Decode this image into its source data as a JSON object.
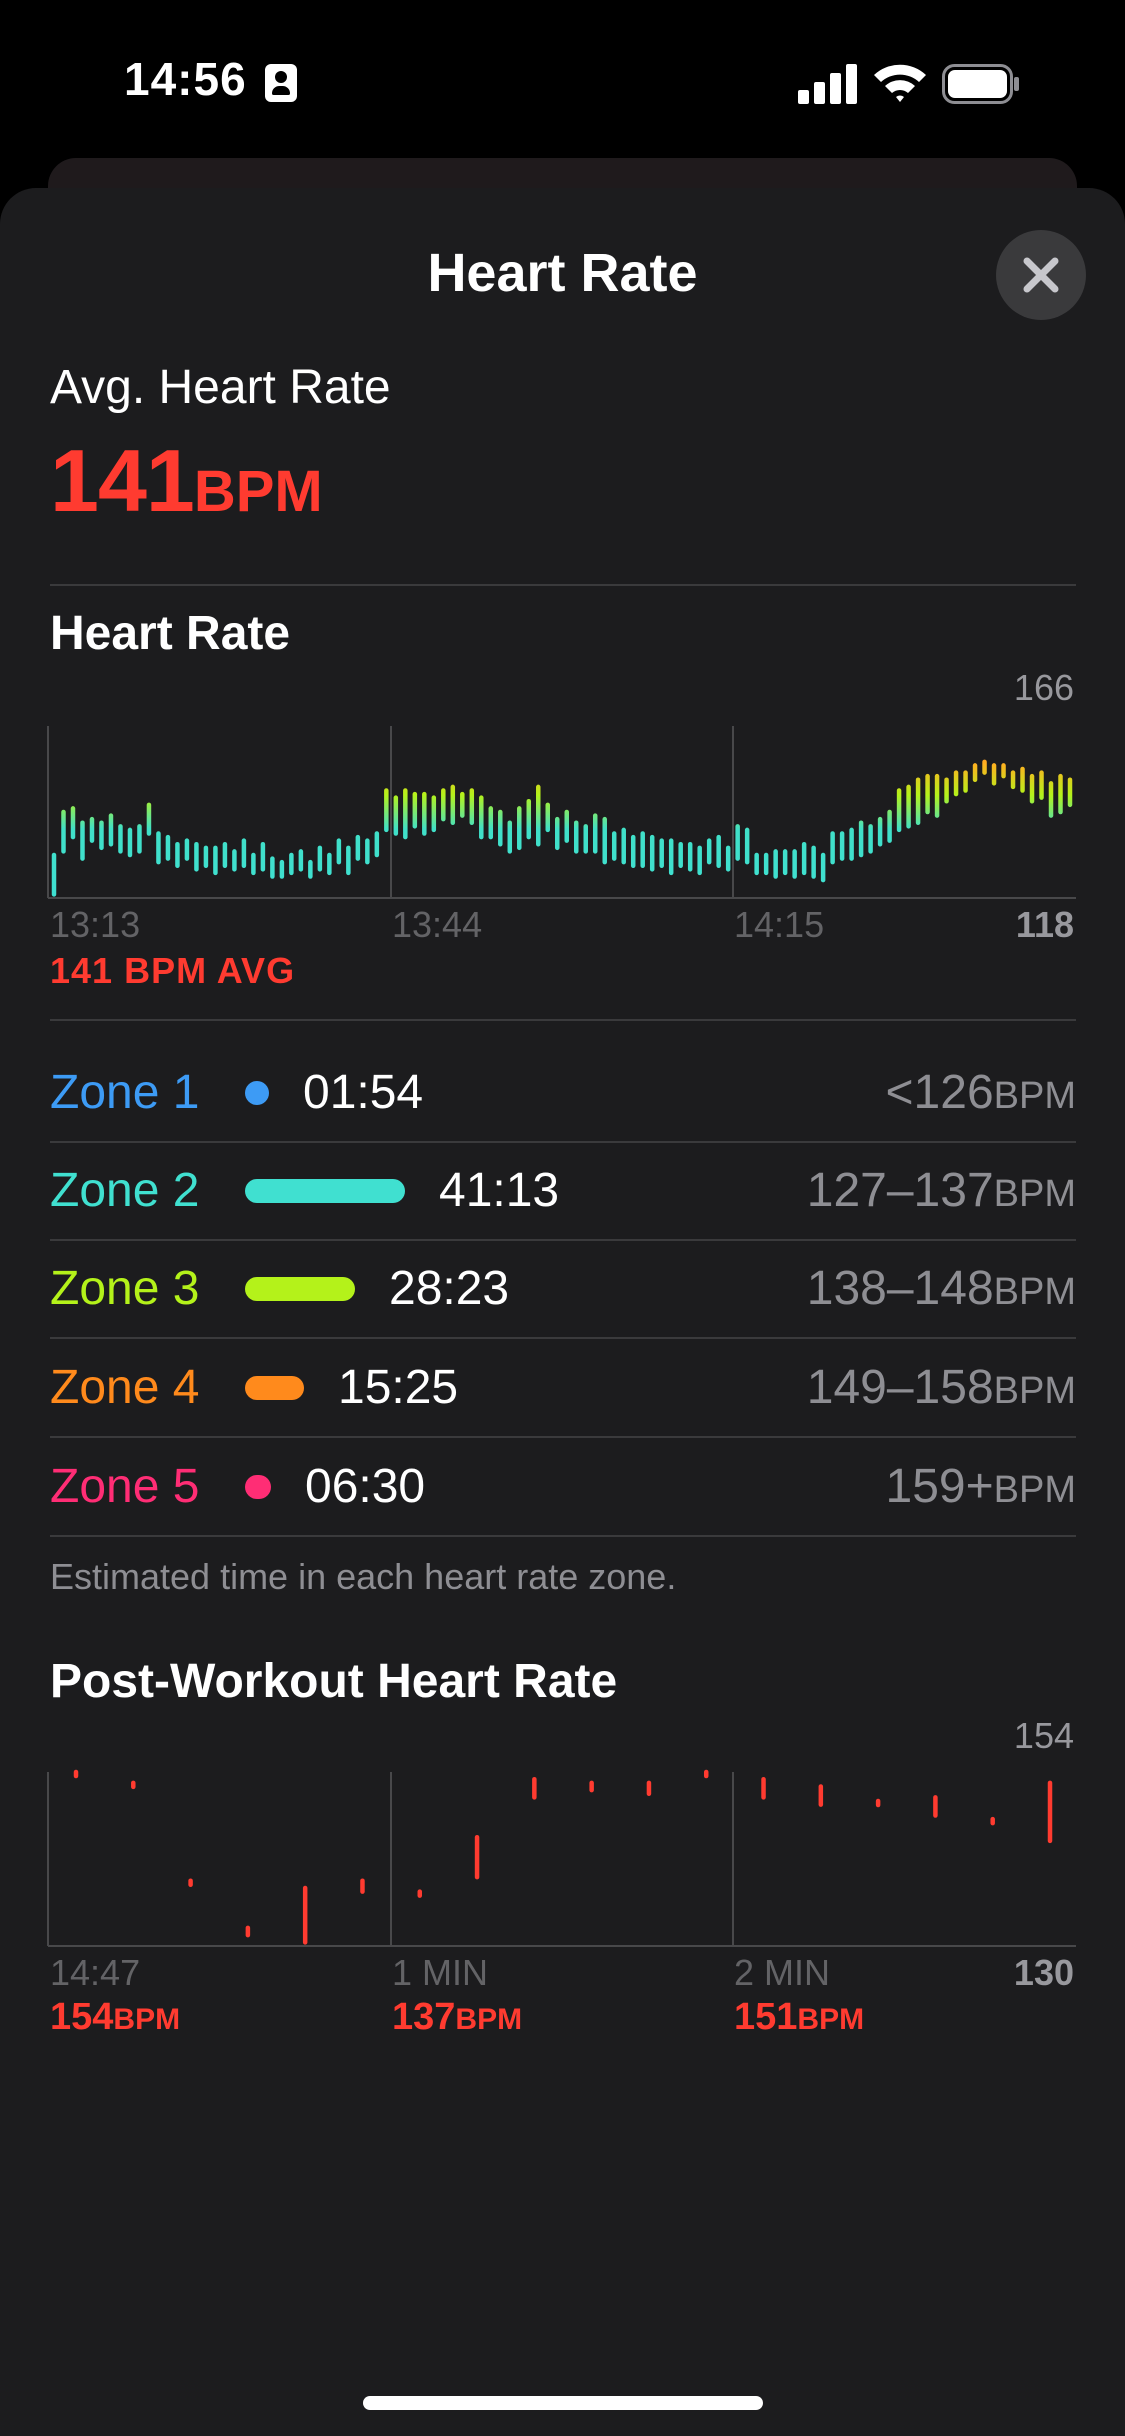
{
  "status_bar": {
    "time": "14:56"
  },
  "sheet": {
    "title": "Heart Rate",
    "close_icon": "xmark-icon"
  },
  "average": {
    "label": "Avg. Heart Rate",
    "value": "141",
    "unit": "BPM"
  },
  "heart_rate_chart": {
    "title": "Heart Rate",
    "y_max_label": "166",
    "y_min_label": "118",
    "x_labels": [
      "13:13",
      "13:44",
      "14:15"
    ],
    "avg_caption": "141 BPM AVG"
  },
  "zones": [
    {
      "name": "Zone 1",
      "time": "01:54",
      "range": "<126",
      "unit": "BPM",
      "color": "#3d9bf5",
      "duration_fraction": 0.05
    },
    {
      "name": "Zone 2",
      "time": "41:13",
      "range": "127–137",
      "unit": "BPM",
      "color": "#40e0d0",
      "duration_fraction": 1.0
    },
    {
      "name": "Zone 3",
      "time": "28:23",
      "range": "138–148",
      "unit": "BPM",
      "color": "#b4f21a",
      "duration_fraction": 0.69
    },
    {
      "name": "Zone 4",
      "time": "15:25",
      "range": "149–158",
      "unit": "BPM",
      "color": "#ff8a1c",
      "duration_fraction": 0.37
    },
    {
      "name": "Zone 5",
      "time": "06:30",
      "range": "159+",
      "unit": "BPM",
      "color": "#ff2d75",
      "duration_fraction": 0.16
    }
  ],
  "zone_caption": "Estimated time in each heart rate zone.",
  "post_workout": {
    "title": "Post-Workout Heart Rate",
    "y_max_label": "154",
    "y_min_label": "130",
    "x_labels": [
      "14:47",
      "1 MIN",
      "2 MIN"
    ],
    "readings": [
      {
        "value": "154",
        "unit": "BPM"
      },
      {
        "value": "137",
        "unit": "BPM"
      },
      {
        "value": "151",
        "unit": "BPM"
      }
    ]
  },
  "chart_data": [
    {
      "type": "bar",
      "title": "Heart Rate",
      "note": "per-sample min–max heart rate ranges",
      "ylim": [
        118,
        166
      ],
      "x_ticks": [
        "13:13",
        "13:44",
        "14:15"
      ],
      "average": 141,
      "series": [
        {
          "values": [
            [
              119,
              130
            ],
            [
              131,
              142
            ],
            [
              135,
              143
            ],
            [
              129,
              139
            ],
            [
              134,
              140
            ],
            [
              132,
              139
            ],
            [
              133,
              141
            ],
            [
              131,
              138
            ],
            [
              130,
              137
            ],
            [
              131,
              138
            ],
            [
              136,
              144
            ],
            [
              128,
              136
            ],
            [
              129,
              135
            ],
            [
              127,
              133
            ],
            [
              129,
              134
            ],
            [
              126,
              133
            ],
            [
              127,
              132
            ],
            [
              125,
              132
            ],
            [
              127,
              133
            ],
            [
              126,
              131
            ],
            [
              127,
              134
            ],
            [
              125,
              130
            ],
            [
              126,
              133
            ],
            [
              124,
              129
            ],
            [
              124,
              128
            ],
            [
              125,
              130
            ],
            [
              126,
              131
            ],
            [
              124,
              128
            ],
            [
              126,
              132
            ],
            [
              125,
              130
            ],
            [
              128,
              134
            ],
            [
              125,
              132
            ],
            [
              129,
              135
            ],
            [
              128,
              134
            ],
            [
              130,
              136
            ],
            [
              137,
              148
            ],
            [
              136,
              146
            ],
            [
              135,
              148
            ],
            [
              138,
              147
            ],
            [
              136,
              147
            ],
            [
              137,
              146
            ],
            [
              140,
              148
            ],
            [
              139,
              149
            ],
            [
              141,
              147
            ],
            [
              139,
              148
            ],
            [
              135,
              146
            ],
            [
              135,
              143
            ],
            [
              133,
              142
            ],
            [
              131,
              139
            ],
            [
              132,
              143
            ],
            [
              135,
              145
            ],
            [
              133,
              149
            ],
            [
              137,
              144
            ],
            [
              132,
              140
            ],
            [
              134,
              142
            ],
            [
              131,
              139
            ],
            [
              131,
              138
            ],
            [
              131,
              141
            ],
            [
              128,
              140
            ],
            [
              129,
              136
            ],
            [
              128,
              137
            ],
            [
              127,
              135
            ],
            [
              127,
              136
            ],
            [
              126,
              135
            ],
            [
              127,
              134
            ],
            [
              125,
              134
            ],
            [
              127,
              133
            ],
            [
              126,
              133
            ],
            [
              125,
              132
            ],
            [
              128,
              134
            ],
            [
              127,
              135
            ],
            [
              126,
              132
            ],
            [
              129,
              138
            ],
            [
              128,
              137
            ],
            [
              125,
              130
            ],
            [
              125,
              130
            ],
            [
              124,
              131
            ],
            [
              125,
              131
            ],
            [
              124,
              131
            ],
            [
              125,
              133
            ],
            [
              124,
              132
            ],
            [
              123,
              130
            ],
            [
              128,
              136
            ],
            [
              129,
              136
            ],
            [
              129,
              137
            ],
            [
              130,
              139
            ],
            [
              131,
              138
            ],
            [
              133,
              140
            ],
            [
              134,
              142
            ],
            [
              137,
              148
            ],
            [
              138,
              149
            ],
            [
              139,
              151
            ],
            [
              142,
              152
            ],
            [
              141,
              152
            ],
            [
              145,
              151
            ],
            [
              147,
              153
            ],
            [
              148,
              153
            ],
            [
              151,
              155
            ],
            [
              153,
              156
            ],
            [
              150,
              155
            ],
            [
              152,
              155
            ],
            [
              149,
              153
            ],
            [
              148,
              154
            ],
            [
              145,
              152
            ],
            [
              146,
              153
            ],
            [
              141,
              150
            ],
            [
              142,
              152
            ],
            [
              144,
              151
            ]
          ]
        }
      ]
    },
    {
      "type": "bar",
      "title": "Post-Workout Heart Rate",
      "note": "per-sample min–max heart rate ranges",
      "ylim": [
        130,
        154
      ],
      "x_ticks": [
        "14:47",
        "1 MIN",
        "2 MIN"
      ],
      "series": [
        {
          "values": [
            [
              153.5,
              154
            ],
            [
              152.0,
              152.5
            ],
            [
              138.5,
              139.0
            ],
            [
              131.5,
              132.5
            ],
            [
              130.5,
              138.0
            ],
            [
              137.5,
              139.0
            ],
            [
              137.0,
              137.5
            ],
            [
              139.5,
              145.0
            ],
            [
              150.5,
              153.0
            ],
            [
              151.5,
              152.5
            ],
            [
              151.0,
              152.5
            ],
            [
              153.5,
              154.0
            ],
            [
              150.5,
              153.0
            ],
            [
              149.5,
              152.0
            ],
            [
              149.5,
              150.0
            ],
            [
              148.0,
              150.5
            ],
            [
              147.0,
              147.5
            ],
            [
              144.5,
              152.5
            ]
          ]
        }
      ]
    }
  ]
}
